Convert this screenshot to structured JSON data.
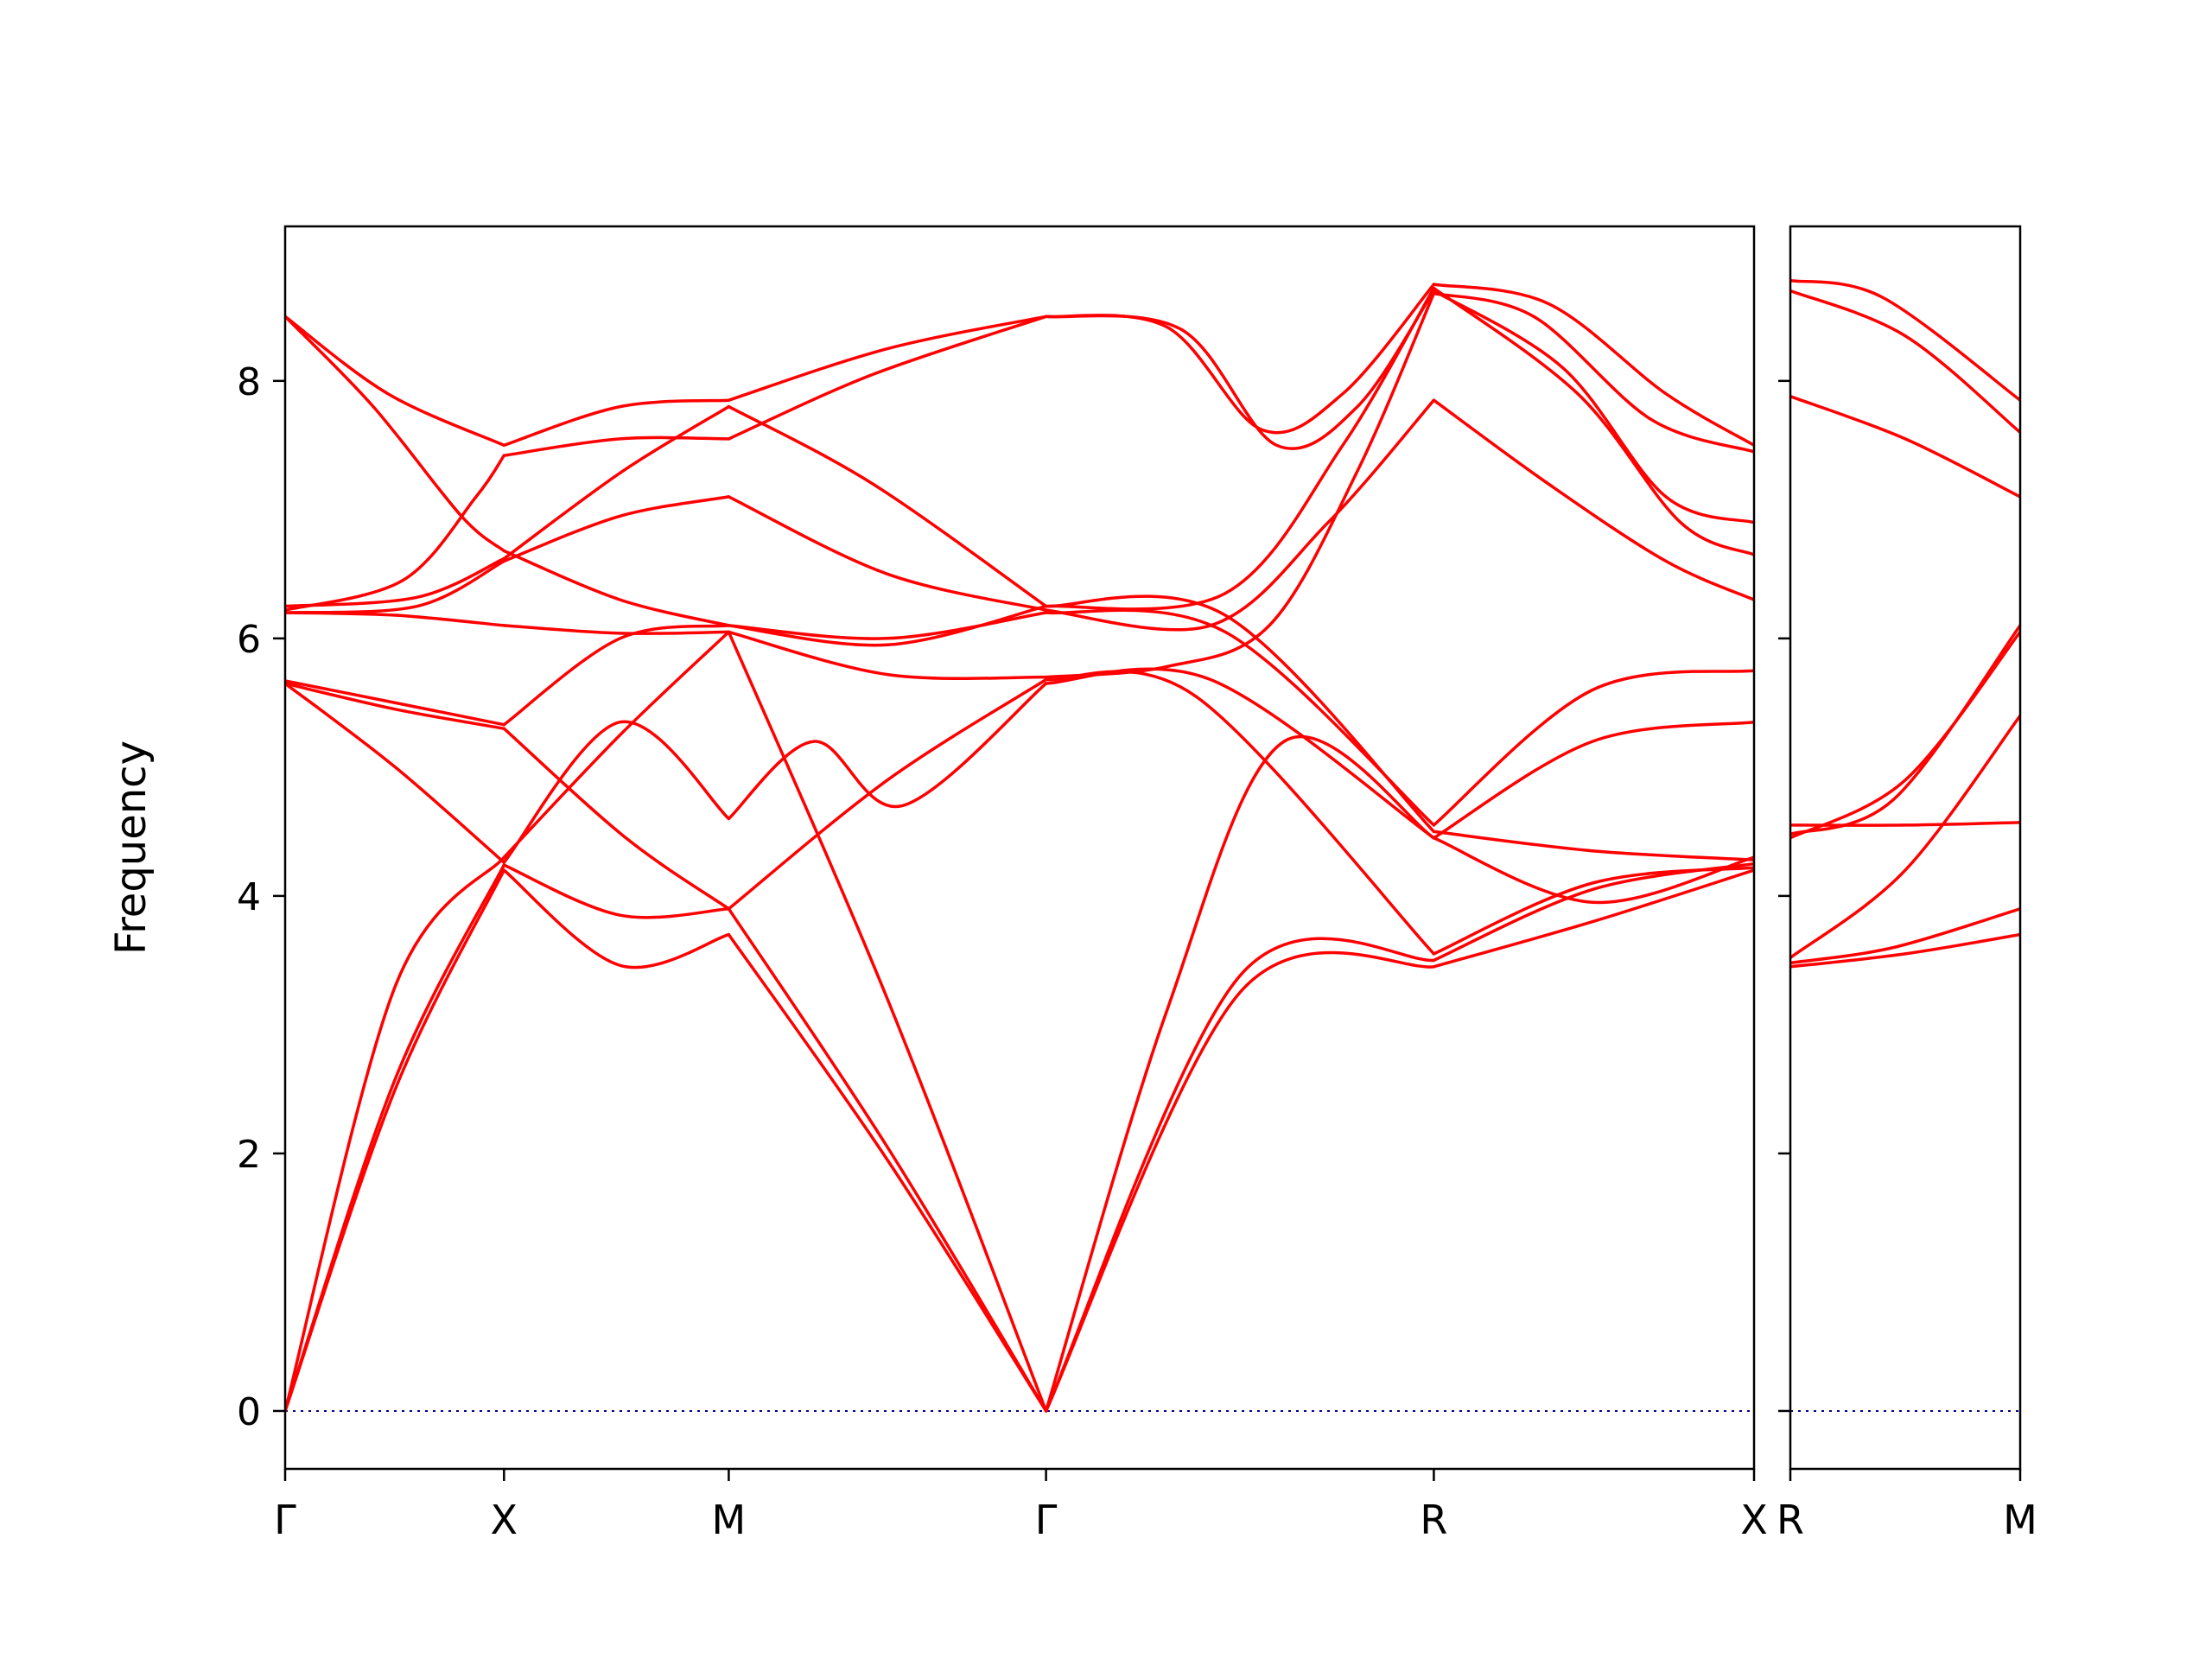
{
  "figure": {
    "background": "#ffffff",
    "description": "Phonon band structure plot with two panels"
  },
  "chart_data": {
    "type": "line",
    "title": "",
    "xlabel": "",
    "ylabel": "Frequency",
    "y_ticks": [
      0,
      2,
      4,
      6,
      8
    ],
    "ylim": [
      -0.45,
      9.2
    ],
    "grid": false,
    "legend": "none",
    "line_color": "#ff0000",
    "axis_color": "#000000",
    "zero_line": {
      "y": 0,
      "color": "#00008b",
      "style": "dotted"
    },
    "panels": [
      {
        "name": "main",
        "x_tick_labels": [
          "Γ",
          "X",
          "M",
          "Γ",
          "R",
          "X"
        ],
        "stations": [
          0,
          0.149,
          0.302,
          0.518,
          0.782,
          1
        ],
        "bands": [
          [
            [
              0,
              0
            ],
            [
              0.075,
              2.5
            ],
            [
              0.149,
              4.2
            ],
            [
              0.228,
              3.46
            ],
            [
              0.302,
              3.7
            ],
            [
              0.41,
              1.95
            ],
            [
              0.518,
              0
            ],
            [
              0.65,
              3.25
            ],
            [
              0.782,
              3.45
            ],
            [
              0.89,
              3.8
            ],
            [
              1,
              4.2
            ]
          ],
          [
            [
              0,
              0
            ],
            [
              0.075,
              2.58
            ],
            [
              0.149,
              4.24
            ],
            [
              0.228,
              3.85
            ],
            [
              0.302,
              3.9
            ],
            [
              0.41,
              2.05
            ],
            [
              0.518,
              0
            ],
            [
              0.65,
              3.38
            ],
            [
              0.782,
              3.5
            ],
            [
              0.89,
              4.05
            ],
            [
              1,
              4.25
            ]
          ],
          [
            [
              0,
              0
            ],
            [
              0.075,
              3.3
            ],
            [
              0.149,
              4.3
            ],
            [
              0.228,
              5.25
            ],
            [
              0.302,
              6.05
            ],
            [
              0.41,
              3.2
            ],
            [
              0.518,
              0
            ],
            [
              0.6,
              3.1
            ],
            [
              0.68,
              5.2
            ],
            [
              0.782,
              4.45
            ],
            [
              0.89,
              3.95
            ],
            [
              1,
              4.3
            ]
          ],
          [
            [
              0,
              5.65
            ],
            [
              0.075,
              5.0
            ],
            [
              0.149,
              4.26
            ],
            [
              0.228,
              5.35
            ],
            [
              0.302,
              4.6
            ],
            [
              0.36,
              5.2
            ],
            [
              0.42,
              4.7
            ],
            [
              0.518,
              5.65
            ],
            [
              0.63,
              5.68
            ],
            [
              0.782,
              4.45
            ],
            [
              0.89,
              5.2
            ],
            [
              1,
              5.35
            ]
          ],
          [
            [
              0,
              5.65
            ],
            [
              0.075,
              5.45
            ],
            [
              0.149,
              5.3
            ],
            [
              0.232,
              4.45
            ],
            [
              0.302,
              3.9
            ],
            [
              0.41,
              4.9
            ],
            [
              0.518,
              5.68
            ],
            [
              0.62,
              5.55
            ],
            [
              0.782,
              3.55
            ],
            [
              0.89,
              4.1
            ],
            [
              1,
              4.22
            ]
          ],
          [
            [
              0,
              5.67
            ],
            [
              0.075,
              5.5
            ],
            [
              0.149,
              5.33
            ],
            [
              0.228,
              6.0
            ],
            [
              0.302,
              6.1
            ],
            [
              0.41,
              6.0
            ],
            [
              0.518,
              6.2
            ],
            [
              0.64,
              6.05
            ],
            [
              0.782,
              4.55
            ],
            [
              0.89,
              5.6
            ],
            [
              1,
              5.75
            ]
          ],
          [
            [
              0,
              6.2
            ],
            [
              0.075,
              6.18
            ],
            [
              0.149,
              6.1
            ],
            [
              0.228,
              6.04
            ],
            [
              0.302,
              6.05
            ],
            [
              0.41,
              5.72
            ],
            [
              0.518,
              5.7
            ],
            [
              0.6,
              5.78
            ],
            [
              0.67,
              6.1
            ],
            [
              0.73,
              7.3
            ],
            [
              0.782,
              8.68
            ],
            [
              0.85,
              8.5
            ],
            [
              0.93,
              7.7
            ],
            [
              1,
              7.45
            ]
          ],
          [
            [
              0,
              6.2
            ],
            [
              0.09,
              6.25
            ],
            [
              0.149,
              6.6
            ],
            [
              0.228,
              6.95
            ],
            [
              0.302,
              7.1
            ],
            [
              0.41,
              6.5
            ],
            [
              0.518,
              6.22
            ],
            [
              0.63,
              6.1
            ],
            [
              0.71,
              6.9
            ],
            [
              0.782,
              7.85
            ],
            [
              0.86,
              7.2
            ],
            [
              0.94,
              6.6
            ],
            [
              1,
              6.3
            ]
          ],
          [
            [
              0,
              6.22
            ],
            [
              0.08,
              6.45
            ],
            [
              0.13,
              7.1
            ],
            [
              0.149,
              7.42
            ],
            [
              0.228,
              7.55
            ],
            [
              0.302,
              7.55
            ],
            [
              0.4,
              8.05
            ],
            [
              0.518,
              8.5
            ],
            [
              0.6,
              8.42
            ],
            [
              0.665,
              7.62
            ],
            [
              0.72,
              7.9
            ],
            [
              0.782,
              8.75
            ],
            [
              0.86,
              8.6
            ],
            [
              0.94,
              7.9
            ],
            [
              1,
              7.5
            ]
          ],
          [
            [
              0,
              8.5
            ],
            [
              0.07,
              7.9
            ],
            [
              0.149,
              7.5
            ],
            [
              0.228,
              7.8
            ],
            [
              0.302,
              7.85
            ],
            [
              0.41,
              8.25
            ],
            [
              0.518,
              8.5
            ],
            [
              0.61,
              8.4
            ],
            [
              0.675,
              7.5
            ],
            [
              0.73,
              7.8
            ],
            [
              0.782,
              8.7
            ],
            [
              0.87,
              8.1
            ],
            [
              0.94,
              7.1
            ],
            [
              1,
              6.9
            ]
          ],
          [
            [
              0,
              8.5
            ],
            [
              0.06,
              7.8
            ],
            [
              0.12,
              6.95
            ],
            [
              0.149,
              6.68
            ],
            [
              0.228,
              6.3
            ],
            [
              0.302,
              6.1
            ],
            [
              0.41,
              5.95
            ],
            [
              0.518,
              6.25
            ],
            [
              0.64,
              6.35
            ],
            [
              0.72,
              7.5
            ],
            [
              0.782,
              8.72
            ],
            [
              0.88,
              7.9
            ],
            [
              0.95,
              6.9
            ],
            [
              1,
              6.65
            ]
          ],
          [
            [
              0,
              6.25
            ],
            [
              0.09,
              6.32
            ],
            [
              0.149,
              6.62
            ],
            [
              0.23,
              7.3
            ],
            [
              0.302,
              7.8
            ],
            [
              0.4,
              7.2
            ],
            [
              0.518,
              6.25
            ],
            [
              0.64,
              6.18
            ],
            [
              0.782,
              4.5
            ],
            [
              0.89,
              4.35
            ],
            [
              1,
              4.28
            ]
          ]
        ]
      },
      {
        "name": "side",
        "x_tick_labels": [
          "R",
          "M"
        ],
        "stations": [
          0,
          1
        ],
        "bands": [
          [
            [
              0,
              3.45
            ],
            [
              0.5,
              3.55
            ],
            [
              1,
              3.7
            ]
          ],
          [
            [
              0,
              3.48
            ],
            [
              0.45,
              3.6
            ],
            [
              1,
              3.9
            ]
          ],
          [
            [
              0,
              4.55
            ],
            [
              0.5,
              4.55
            ],
            [
              1,
              4.57
            ]
          ],
          [
            [
              0,
              3.52
            ],
            [
              0.5,
              4.2
            ],
            [
              1,
              5.4
            ]
          ],
          [
            [
              0,
              4.45
            ],
            [
              0.5,
              4.9
            ],
            [
              1,
              6.05
            ]
          ],
          [
            [
              0,
              4.48
            ],
            [
              0.45,
              4.75
            ],
            [
              1,
              6.1
            ]
          ],
          [
            [
              0,
              7.88
            ],
            [
              0.5,
              7.55
            ],
            [
              1,
              7.1
            ]
          ],
          [
            [
              0,
              8.7
            ],
            [
              0.5,
              8.35
            ],
            [
              1,
              7.6
            ]
          ],
          [
            [
              0,
              8.78
            ],
            [
              0.4,
              8.65
            ],
            [
              1,
              7.85
            ]
          ]
        ]
      }
    ]
  }
}
